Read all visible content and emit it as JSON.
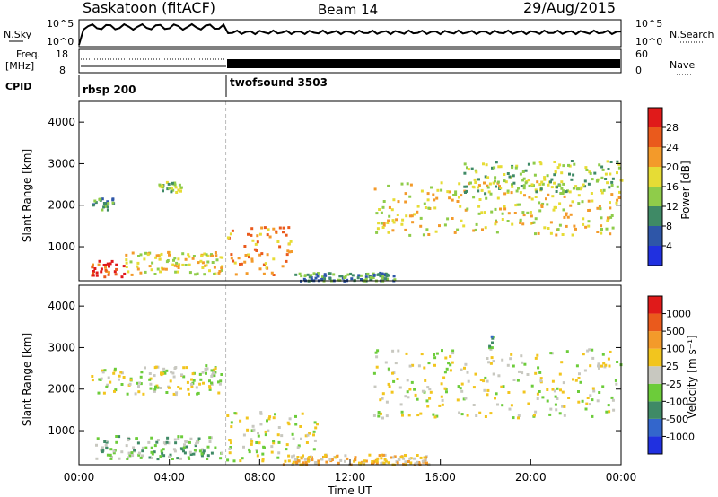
{
  "header": {
    "station": "Saskatoon (fitACF)",
    "beam": "Beam 14",
    "date": "29/Aug/2015"
  },
  "top_panels": {
    "nsky_label": "N.Sky",
    "nsearch_label": "N.Search",
    "noise_ticks_left": [
      "10^5",
      "10^0"
    ],
    "noise_ticks_right": [
      "10^5",
      "10^0"
    ],
    "freq_label_1": "Freq.",
    "freq_label_2": "[MHz]",
    "freq_ticks": [
      "18",
      "8"
    ],
    "nave_label": "Nave",
    "nave_ticks": [
      "60",
      "0"
    ],
    "cpid_label": "CPID",
    "cpid_1": "rbsp 200",
    "cpid_2": "twofsound 3503"
  },
  "chart_data": [
    {
      "type": "heatmap",
      "name": "power",
      "ylabel": "Slant Range [km]",
      "yticks": [
        "4000",
        "3000",
        "2000",
        "1000"
      ],
      "ylim": [
        180,
        4500
      ],
      "colorbar_label": "Power [dB]",
      "colorbar_ticks": [
        "28",
        "24",
        "20",
        "16",
        "12",
        "8",
        "4"
      ],
      "colors": [
        "#2030e0",
        "#2e56a8",
        "#3f8a66",
        "#8fcc4a",
        "#e6dc35",
        "#f39a2a",
        "#ea5a1c",
        "#e01a1a"
      ],
      "regions": [
        {
          "t0": 0.5,
          "t1": 2.0,
          "r0": 300,
          "r1": 700,
          "level": 6
        },
        {
          "t0": 2.0,
          "t1": 6.3,
          "r0": 350,
          "r1": 900,
          "level": 4
        },
        {
          "t0": 0.5,
          "t1": 1.5,
          "r0": 1900,
          "r1": 2200,
          "level": 2
        },
        {
          "t0": 3.3,
          "t1": 4.5,
          "r0": 2300,
          "r1": 2600,
          "level": 3
        },
        {
          "t0": 6.5,
          "t1": 9.5,
          "r0": 350,
          "r1": 1500,
          "level": 5
        },
        {
          "t0": 9.5,
          "t1": 14.0,
          "r0": 200,
          "r1": 400,
          "level": 2
        },
        {
          "t0": 13.0,
          "t1": 24.0,
          "r0": 1300,
          "r1": 2600,
          "level": 4
        },
        {
          "t0": 17.0,
          "t1": 24.0,
          "r0": 2300,
          "r1": 3100,
          "level": 3
        }
      ]
    },
    {
      "type": "heatmap",
      "name": "velocity",
      "ylabel": "Slant Range [km]",
      "yticks": [
        "4000",
        "3000",
        "2000",
        "1000"
      ],
      "ylim": [
        180,
        4500
      ],
      "colorbar_label": "Velocity [m s⁻¹]",
      "colorbar_ticks": [
        "1000",
        "500",
        "100",
        "25",
        "-25",
        "-100",
        "-500",
        "-1000"
      ],
      "colors": [
        "#2030e0",
        "#3366cc",
        "#3f8a66",
        "#6ccc3a",
        "#c8c8c0",
        "#f2c51e",
        "#f39a2a",
        "#ea5a1c",
        "#e01a1a"
      ],
      "regions": [
        {
          "t0": 0.5,
          "t1": 6.3,
          "r0": 350,
          "r1": 900,
          "level": 3
        },
        {
          "t0": 0.5,
          "t1": 6.3,
          "r0": 1900,
          "r1": 2600,
          "level": 4
        },
        {
          "t0": 6.5,
          "t1": 10.5,
          "r0": 300,
          "r1": 1500,
          "level": 4
        },
        {
          "t0": 9.0,
          "t1": 15.5,
          "r0": 200,
          "r1": 450,
          "level": 5
        },
        {
          "t0": 13.0,
          "t1": 24.0,
          "r0": 1300,
          "r1": 3000,
          "level": 4
        },
        {
          "t0": 18.0,
          "t1": 18.3,
          "r0": 2900,
          "r1": 3300,
          "level": 2
        }
      ]
    }
  ],
  "time_axis": {
    "ticks": [
      "00:00",
      "04:00",
      "08:00",
      "12:00",
      "16:00",
      "20:00",
      "00:00"
    ],
    "label": "Time UT"
  }
}
